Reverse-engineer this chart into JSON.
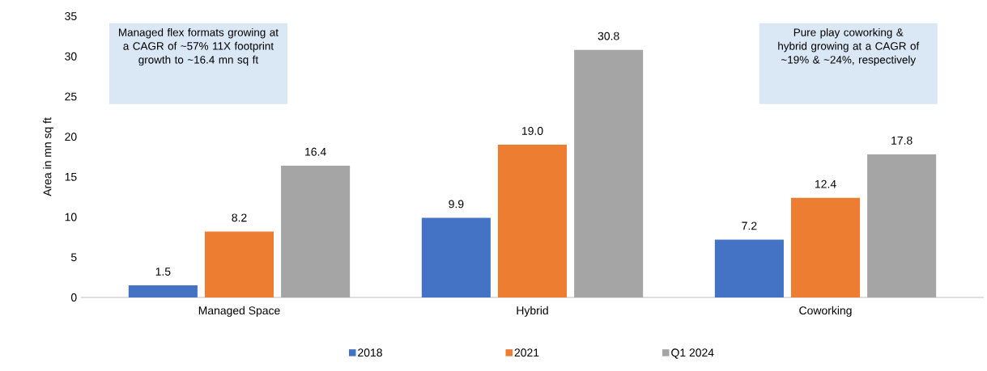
{
  "chart_data": {
    "type": "bar",
    "ylabel": "Area in mn sq ft",
    "categories": [
      "Managed Space",
      "Hybrid",
      "Coworking"
    ],
    "series": [
      {
        "name": "2018",
        "color": "#4472c4",
        "values": [
          1.5,
          9.9,
          7.2
        ],
        "value_labels": [
          "1.5",
          "9.9",
          "7.2"
        ]
      },
      {
        "name": "2021",
        "color": "#ed7d31",
        "values": [
          8.2,
          19.0,
          12.4
        ],
        "value_labels": [
          "8.2",
          "19.0",
          "12.4"
        ]
      },
      {
        "name": "Q1 2024",
        "color": "#a5a5a5",
        "values": [
          16.4,
          30.8,
          17.8
        ],
        "value_labels": [
          "16.4",
          "30.8",
          "17.8"
        ]
      }
    ],
    "ylim": [
      0,
      35
    ],
    "yticks": [
      0,
      5,
      10,
      15,
      20,
      25,
      30,
      35
    ],
    "legend": "bottom",
    "annotations": [
      "Managed flex formats growing at a CAGR of ~57% 11X footprint growth to ~16.4 mn sq ft",
      "Pure play coworking & hybrid growing at a CAGR of ~19% & ~24%, respectively"
    ]
  }
}
